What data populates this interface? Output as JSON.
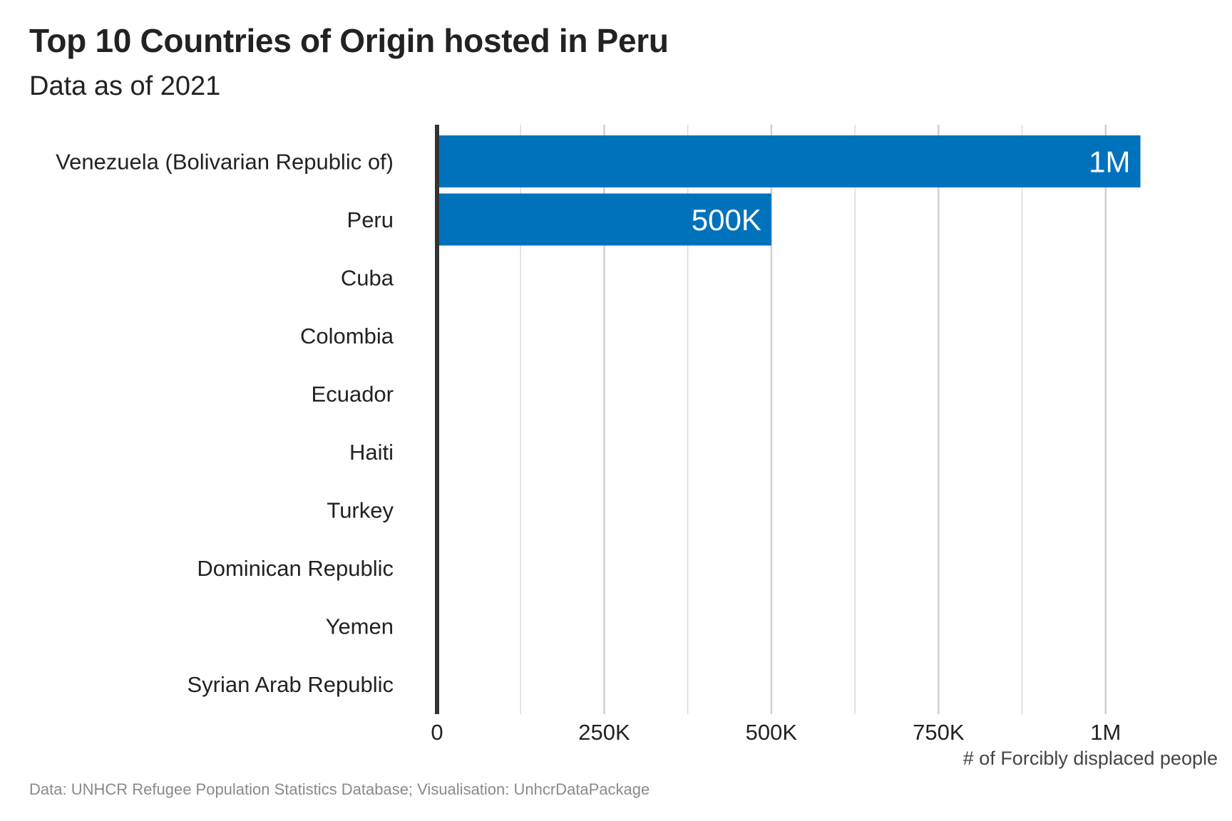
{
  "header": {
    "title": "Top 10 Countries of Origin hosted in Peru",
    "subtitle": "Data as of 2021"
  },
  "footer": {
    "caption": "Data: UNHCR Refugee Population Statistics Database; Visualisation: UnhcrDataPackage"
  },
  "colors": {
    "bar": "#0072BC",
    "bar_label": "#ffffff",
    "grid": "#d9d9d9",
    "baseline": "#333333",
    "text": "#222222",
    "caption": "#8a8a8a"
  },
  "chart_data": {
    "type": "bar",
    "orientation": "horizontal",
    "title": "Top 10 Countries of Origin hosted in Peru",
    "subtitle": "Data as of 2021",
    "xlabel": "# of Forcibly displaced people",
    "ylabel": "",
    "categories": [
      "Venezuela (Bolivarian Republic of)",
      "Peru",
      "Cuba",
      "Colombia",
      "Ecuador",
      "Haiti",
      "Turkey",
      "Dominican Republic",
      "Yemen",
      "Syrian Arab Republic"
    ],
    "values": [
      1052000,
      500000,
      0,
      0,
      0,
      0,
      0,
      0,
      0,
      0
    ],
    "data_labels": [
      "1M",
      "500K",
      "",
      "",
      "",
      "",
      "",
      "",
      "",
      ""
    ],
    "xlim": [
      0,
      1125000
    ],
    "xticks": [
      0,
      250000,
      500000,
      750000,
      1000000
    ],
    "xtick_labels": [
      "0",
      "250K",
      "500K",
      "750K",
      "1M"
    ],
    "minor_gridlines": [
      125000,
      375000,
      625000,
      875000
    ],
    "grid": true,
    "legend": "none"
  }
}
